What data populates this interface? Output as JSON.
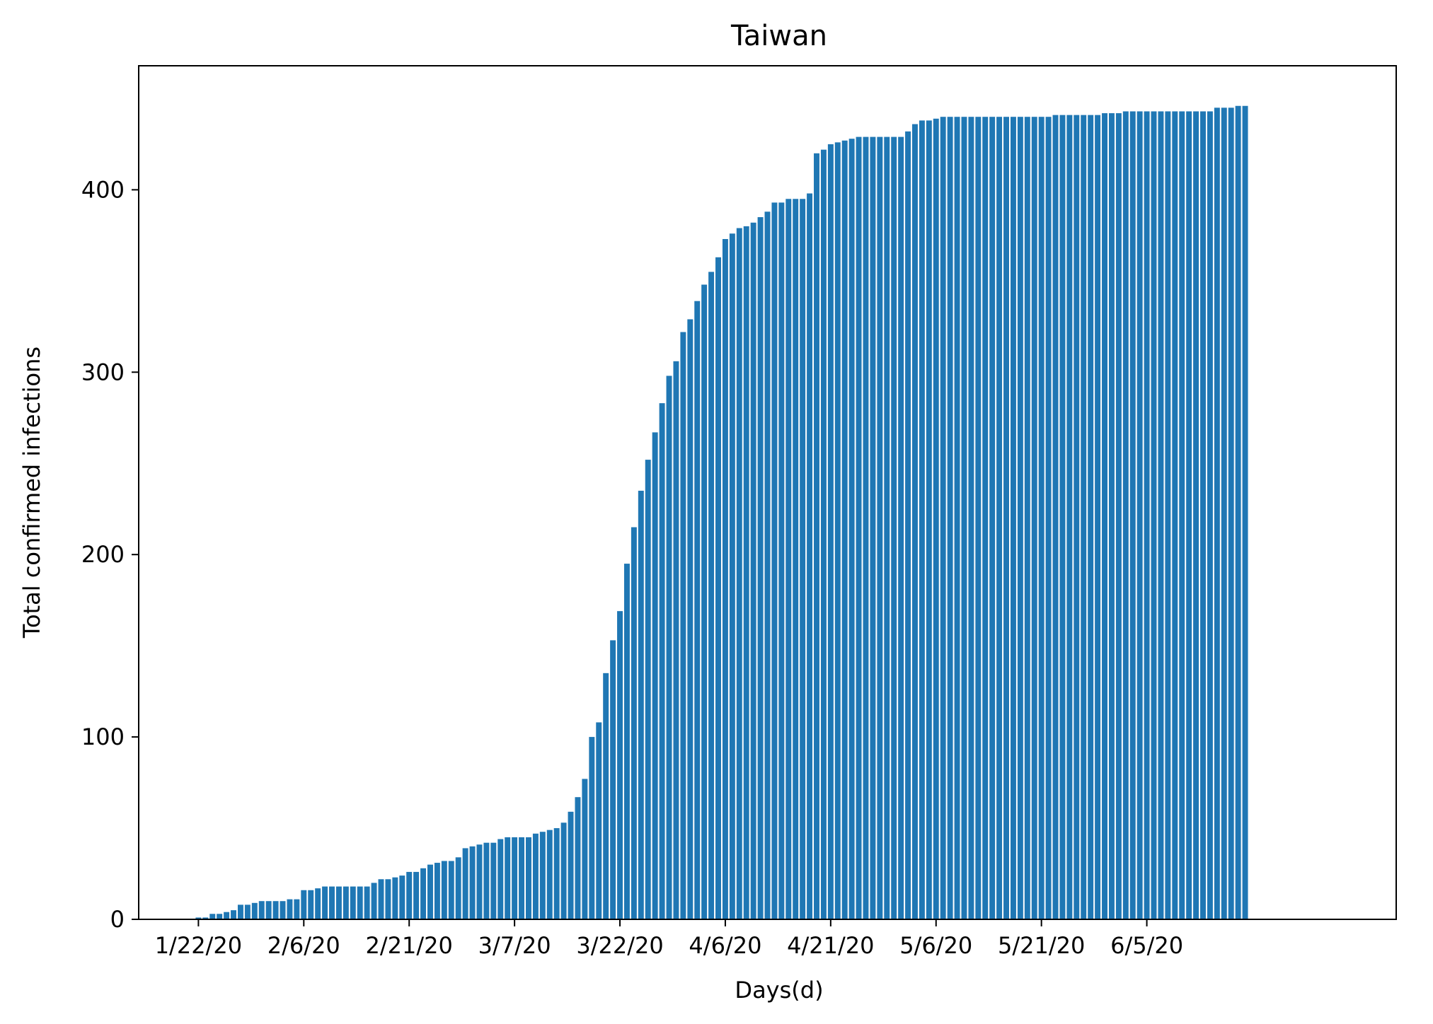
{
  "chart_data": {
    "type": "bar",
    "title": "Taiwan",
    "xlabel": "Days(d)",
    "ylabel": "Total confirmed infections",
    "ylim": [
      0,
      468
    ],
    "xlim": [
      -8.5,
      170.5
    ],
    "grid": false,
    "legend": "none",
    "color": "#1f77b4",
    "bar_width": 0.8,
    "x_start_date": "1/22/20",
    "x_ticks": [
      {
        "x": 0,
        "label": "1/22/20"
      },
      {
        "x": 15,
        "label": "2/6/20"
      },
      {
        "x": 30,
        "label": "2/21/20"
      },
      {
        "x": 45,
        "label": "3/7/20"
      },
      {
        "x": 60,
        "label": "3/22/20"
      },
      {
        "x": 75,
        "label": "4/6/20"
      },
      {
        "x": 90,
        "label": "4/21/20"
      },
      {
        "x": 105,
        "label": "5/6/20"
      },
      {
        "x": 120,
        "label": "5/21/20"
      },
      {
        "x": 135,
        "label": "6/5/20"
      }
    ],
    "y_ticks": [
      0,
      100,
      200,
      300,
      400
    ],
    "values": [
      1,
      1,
      3,
      3,
      4,
      5,
      8,
      8,
      9,
      10,
      10,
      10,
      10,
      11,
      11,
      16,
      16,
      17,
      18,
      18,
      18,
      18,
      18,
      18,
      18,
      20,
      22,
      22,
      23,
      24,
      26,
      26,
      28,
      30,
      31,
      32,
      32,
      34,
      39,
      40,
      41,
      42,
      42,
      44,
      45,
      45,
      45,
      45,
      47,
      48,
      49,
      50,
      53,
      59,
      67,
      77,
      100,
      108,
      135,
      153,
      169,
      195,
      215,
      235,
      252,
      267,
      283,
      298,
      306,
      322,
      329,
      339,
      348,
      355,
      363,
      373,
      376,
      379,
      380,
      382,
      385,
      388,
      393,
      393,
      395,
      395,
      395,
      398,
      420,
      422,
      425,
      426,
      427,
      428,
      429,
      429,
      429,
      429,
      429,
      429,
      429,
      432,
      436,
      438,
      438,
      439,
      440,
      440,
      440,
      440,
      440,
      440,
      440,
      440,
      440,
      440,
      440,
      440,
      440,
      440,
      440,
      440,
      441,
      441,
      441,
      441,
      441,
      441,
      441,
      442,
      442,
      442,
      443,
      443,
      443,
      443,
      443,
      443,
      443,
      443,
      443,
      443,
      443,
      443,
      443,
      445,
      445,
      445,
      446,
      446
    ]
  }
}
